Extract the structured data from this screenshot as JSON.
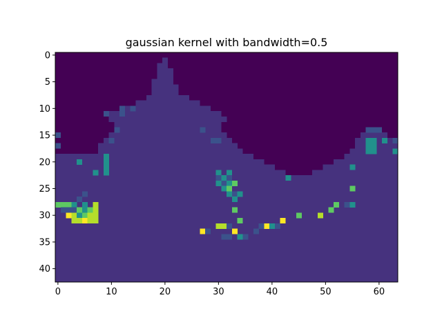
{
  "chart_data": {
    "type": "heatmap",
    "title": "gaussian kernel with bandwidth=0.5",
    "xlabel": "",
    "ylabel": "",
    "ncols": 64,
    "nrows": 43,
    "xlim": [
      -0.5,
      63.5
    ],
    "ylim": [
      42.5,
      -0.5
    ],
    "x_ticks": [
      0,
      10,
      20,
      30,
      40,
      50,
      60
    ],
    "y_ticks": [
      0,
      5,
      10,
      15,
      20,
      25,
      30,
      35,
      40
    ],
    "colormap": "viridis",
    "colors": {
      "sea": "#440154",
      "land": "#46327e",
      "low": "#3b528b",
      "mid": "#21918c",
      "midhigh": "#5ec962",
      "high": "#b5de2b",
      "max": "#fde725"
    },
    "grid": false,
    "legend": "none",
    "land_rows": [
      {
        "y": 1,
        "ranges": [
          [
            20,
            20
          ]
        ]
      },
      {
        "y": 2,
        "ranges": [
          [
            19,
            20
          ]
        ]
      },
      {
        "y": 3,
        "ranges": [
          [
            19,
            21
          ]
        ]
      },
      {
        "y": 4,
        "ranges": [
          [
            19,
            21
          ]
        ]
      },
      {
        "y": 5,
        "ranges": [
          [
            18,
            21
          ]
        ]
      },
      {
        "y": 6,
        "ranges": [
          [
            18,
            22
          ]
        ]
      },
      {
        "y": 7,
        "ranges": [
          [
            18,
            22
          ]
        ]
      },
      {
        "y": 8,
        "ranges": [
          [
            17,
            24
          ]
        ]
      },
      {
        "y": 9,
        "ranges": [
          [
            15,
            26
          ]
        ]
      },
      {
        "y": 10,
        "ranges": [
          [
            12,
            28
          ]
        ]
      },
      {
        "y": 11,
        "ranges": [
          [
            9,
            30
          ]
        ]
      },
      {
        "y": 12,
        "ranges": [
          [
            10,
            31
          ]
        ]
      },
      {
        "y": 13,
        "ranges": [
          [
            11,
            30
          ]
        ]
      },
      {
        "y": 14,
        "ranges": [
          [
            11,
            30
          ]
        ]
      },
      {
        "y": 15,
        "ranges": [
          [
            10,
            31
          ],
          [
            57,
            61
          ]
        ]
      },
      {
        "y": 16,
        "ranges": [
          [
            9,
            32
          ],
          [
            56,
            62
          ]
        ]
      },
      {
        "y": 17,
        "ranges": [
          [
            8,
            33
          ],
          [
            56,
            63
          ]
        ]
      },
      {
        "y": 18,
        "ranges": [
          [
            8,
            34
          ],
          [
            55,
            63
          ]
        ]
      },
      {
        "y": 19,
        "ranges": [
          [
            0,
            36
          ],
          [
            54,
            63
          ]
        ]
      },
      {
        "y": 20,
        "ranges": [
          [
            0,
            38
          ],
          [
            52,
            63
          ]
        ]
      },
      {
        "y": 21,
        "ranges": [
          [
            0,
            40
          ],
          [
            50,
            63
          ]
        ]
      },
      {
        "y": 22,
        "ranges": [
          [
            0,
            42
          ],
          [
            48,
            63
          ]
        ]
      },
      {
        "y": 23,
        "ranges": [
          [
            0,
            63
          ]
        ]
      },
      {
        "y": 24,
        "ranges": [
          [
            0,
            63
          ]
        ]
      },
      {
        "y": 25,
        "ranges": [
          [
            0,
            63
          ]
        ]
      },
      {
        "y": 26,
        "ranges": [
          [
            0,
            63
          ]
        ]
      },
      {
        "y": 27,
        "ranges": [
          [
            0,
            63
          ]
        ]
      },
      {
        "y": 28,
        "ranges": [
          [
            0,
            63
          ]
        ]
      },
      {
        "y": 29,
        "ranges": [
          [
            0,
            63
          ]
        ]
      },
      {
        "y": 30,
        "ranges": [
          [
            0,
            63
          ]
        ]
      },
      {
        "y": 31,
        "ranges": [
          [
            0,
            63
          ]
        ]
      },
      {
        "y": 32,
        "ranges": [
          [
            0,
            63
          ]
        ]
      },
      {
        "y": 33,
        "ranges": [
          [
            0,
            63
          ]
        ]
      },
      {
        "y": 34,
        "ranges": [
          [
            0,
            63
          ]
        ]
      },
      {
        "y": 35,
        "ranges": [
          [
            0,
            63
          ]
        ]
      },
      {
        "y": 36,
        "ranges": [
          [
            0,
            63
          ]
        ]
      },
      {
        "y": 37,
        "ranges": [
          [
            0,
            63
          ]
        ]
      },
      {
        "y": 38,
        "ranges": [
          [
            0,
            63
          ]
        ]
      },
      {
        "y": 39,
        "ranges": [
          [
            0,
            63
          ]
        ]
      },
      {
        "y": 40,
        "ranges": [
          [
            0,
            63
          ]
        ]
      },
      {
        "y": 41,
        "ranges": [
          [
            0,
            63
          ]
        ]
      },
      {
        "y": 42,
        "ranges": [
          [
            0,
            63
          ]
        ]
      }
    ],
    "cells": [
      {
        "x": 9,
        "y": 11,
        "level": "low"
      },
      {
        "x": 12,
        "y": 10,
        "level": "low"
      },
      {
        "x": 12,
        "y": 11,
        "level": "low"
      },
      {
        "x": 14,
        "y": 10,
        "level": "low"
      },
      {
        "x": 11,
        "y": 14,
        "level": "low"
      },
      {
        "x": 10,
        "y": 16,
        "level": "low"
      },
      {
        "x": 0,
        "y": 15,
        "level": "low"
      },
      {
        "x": 0,
        "y": 17,
        "level": "low"
      },
      {
        "x": 27,
        "y": 14,
        "level": "low"
      },
      {
        "x": 29,
        "y": 16,
        "level": "low"
      },
      {
        "x": 30,
        "y": 16,
        "level": "low"
      },
      {
        "x": 4,
        "y": 20,
        "level": "mid"
      },
      {
        "x": 9,
        "y": 19,
        "level": "mid"
      },
      {
        "x": 9,
        "y": 20,
        "level": "mid"
      },
      {
        "x": 9,
        "y": 21,
        "level": "mid"
      },
      {
        "x": 9,
        "y": 22,
        "level": "mid"
      },
      {
        "x": 7,
        "y": 22,
        "level": "mid"
      },
      {
        "x": 5,
        "y": 26,
        "level": "low"
      },
      {
        "x": 4,
        "y": 27,
        "level": "low"
      },
      {
        "x": 0,
        "y": 28,
        "level": "midhigh"
      },
      {
        "x": 1,
        "y": 28,
        "level": "midhigh"
      },
      {
        "x": 2,
        "y": 28,
        "level": "midhigh"
      },
      {
        "x": 3,
        "y": 28,
        "level": "mid"
      },
      {
        "x": 5,
        "y": 28,
        "level": "mid"
      },
      {
        "x": 7,
        "y": 28,
        "level": "high"
      },
      {
        "x": 1,
        "y": 29,
        "level": "low"
      },
      {
        "x": 2,
        "y": 29,
        "level": "low"
      },
      {
        "x": 3,
        "y": 29,
        "level": "low"
      },
      {
        "x": 4,
        "y": 29,
        "level": "midhigh"
      },
      {
        "x": 5,
        "y": 29,
        "level": "mid"
      },
      {
        "x": 6,
        "y": 29,
        "level": "midhigh"
      },
      {
        "x": 7,
        "y": 29,
        "level": "high"
      },
      {
        "x": 2,
        "y": 30,
        "level": "max"
      },
      {
        "x": 3,
        "y": 30,
        "level": "high"
      },
      {
        "x": 4,
        "y": 30,
        "level": "mid"
      },
      {
        "x": 5,
        "y": 30,
        "level": "midhigh"
      },
      {
        "x": 6,
        "y": 30,
        "level": "high"
      },
      {
        "x": 7,
        "y": 30,
        "level": "high"
      },
      {
        "x": 3,
        "y": 31,
        "level": "high"
      },
      {
        "x": 4,
        "y": 31,
        "level": "high"
      },
      {
        "x": 5,
        "y": 31,
        "level": "max"
      },
      {
        "x": 6,
        "y": 31,
        "level": "high"
      },
      {
        "x": 7,
        "y": 31,
        "level": "high"
      },
      {
        "x": 30,
        "y": 22,
        "level": "mid"
      },
      {
        "x": 32,
        "y": 22,
        "level": "mid"
      },
      {
        "x": 30,
        "y": 23,
        "level": "low"
      },
      {
        "x": 31,
        "y": 23,
        "level": "mid"
      },
      {
        "x": 32,
        "y": 23,
        "level": "low"
      },
      {
        "x": 30,
        "y": 24,
        "level": "mid"
      },
      {
        "x": 31,
        "y": 24,
        "level": "low"
      },
      {
        "x": 32,
        "y": 24,
        "level": "mid"
      },
      {
        "x": 33,
        "y": 24,
        "level": "midhigh"
      },
      {
        "x": 31,
        "y": 25,
        "level": "mid"
      },
      {
        "x": 32,
        "y": 25,
        "level": "midhigh"
      },
      {
        "x": 32,
        "y": 26,
        "level": "mid"
      },
      {
        "x": 33,
        "y": 26,
        "level": "low"
      },
      {
        "x": 34,
        "y": 26,
        "level": "mid"
      },
      {
        "x": 33,
        "y": 27,
        "level": "mid"
      },
      {
        "x": 33,
        "y": 29,
        "level": "midhigh"
      },
      {
        "x": 34,
        "y": 31,
        "level": "midhigh"
      },
      {
        "x": 30,
        "y": 32,
        "level": "high"
      },
      {
        "x": 31,
        "y": 32,
        "level": "high"
      },
      {
        "x": 32,
        "y": 32,
        "level": "low"
      },
      {
        "x": 27,
        "y": 33,
        "level": "max"
      },
      {
        "x": 28,
        "y": 33,
        "level": "low"
      },
      {
        "x": 33,
        "y": 33,
        "level": "max"
      },
      {
        "x": 31,
        "y": 34,
        "level": "low"
      },
      {
        "x": 32,
        "y": 34,
        "level": "low"
      },
      {
        "x": 34,
        "y": 34,
        "level": "mid"
      },
      {
        "x": 35,
        "y": 34,
        "level": "low"
      },
      {
        "x": 37,
        "y": 33,
        "level": "low"
      },
      {
        "x": 38,
        "y": 32,
        "level": "low"
      },
      {
        "x": 39,
        "y": 32,
        "level": "max"
      },
      {
        "x": 40,
        "y": 32,
        "level": "mid"
      },
      {
        "x": 41,
        "y": 32,
        "level": "low"
      },
      {
        "x": 42,
        "y": 31,
        "level": "max"
      },
      {
        "x": 43,
        "y": 23,
        "level": "mid"
      },
      {
        "x": 45,
        "y": 30,
        "level": "midhigh"
      },
      {
        "x": 49,
        "y": 30,
        "level": "high"
      },
      {
        "x": 51,
        "y": 29,
        "level": "midhigh"
      },
      {
        "x": 52,
        "y": 28,
        "level": "midhigh"
      },
      {
        "x": 54,
        "y": 28,
        "level": "low"
      },
      {
        "x": 55,
        "y": 28,
        "level": "mid"
      },
      {
        "x": 55,
        "y": 25,
        "level": "midhigh"
      },
      {
        "x": 55,
        "y": 21,
        "level": "mid"
      },
      {
        "x": 58,
        "y": 14,
        "level": "low"
      },
      {
        "x": 59,
        "y": 14,
        "level": "low"
      },
      {
        "x": 60,
        "y": 14,
        "level": "low"
      },
      {
        "x": 61,
        "y": 16,
        "level": "mid"
      },
      {
        "x": 58,
        "y": 16,
        "level": "mid"
      },
      {
        "x": 59,
        "y": 16,
        "level": "mid"
      },
      {
        "x": 58,
        "y": 17,
        "level": "mid"
      },
      {
        "x": 59,
        "y": 17,
        "level": "mid"
      },
      {
        "x": 58,
        "y": 18,
        "level": "mid"
      },
      {
        "x": 59,
        "y": 18,
        "level": "mid"
      },
      {
        "x": 63,
        "y": 16,
        "level": "low"
      },
      {
        "x": 63,
        "y": 18,
        "level": "mid"
      }
    ]
  }
}
